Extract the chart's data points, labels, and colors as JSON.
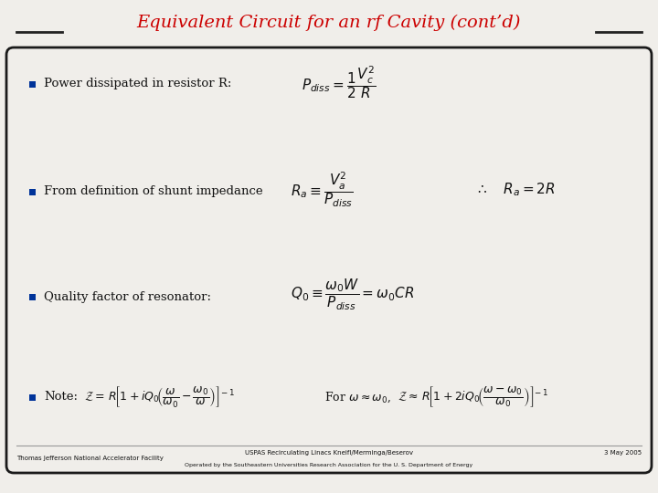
{
  "title": "Equivalent Circuit for an rf Cavity (cont’d)",
  "title_color": "#cc0000",
  "bg_color": "#f0eeea",
  "border_color": "#1a1a1a",
  "bullet_color": "#003399",
  "text_color": "#111111",
  "bullet1_text": "Power dissipated in resistor R:",
  "bullet1_formula": "$P_{diss} = \\dfrac{1}{2}\\dfrac{V_c^2}{R}$",
  "bullet2_text": "From definition of shunt impedance",
  "bullet2_formula": "$R_a \\equiv \\dfrac{V_a^2}{P_{diss}}$",
  "bullet2_result": "$\\therefore\\quad R_a = 2R$",
  "bullet3_text": "Quality factor of resonator:",
  "bullet3_formula": "$Q_0 \\equiv \\dfrac{\\omega_0 W}{P_{diss}} = \\omega_0 CR$",
  "bullet4_text": "Note:",
  "bullet4_formula1": "$\\mathcal{Z}{=}\\, R\\!\\left[1 + iQ_0\\!\\left(\\dfrac{\\omega}{\\omega_0} - \\dfrac{\\omega_0}{\\omega}\\right)\\right]^{\\!-1}$",
  "bullet4_for": "For $\\omega \\approx \\omega_0$,",
  "bullet4_formula2": "$\\mathcal{Z}{\\approx}\\, R\\!\\left[1 + 2iQ_0\\!\\left(\\dfrac{\\omega - \\omega_0}{\\omega_0}\\right)\\right]^{\\!-1}$",
  "footer_left": "Thomas Jefferson National Accelerator Facility",
  "footer_center1": "USPAS Recirculating Linacs Kneifl/Merminga/Beserov",
  "footer_center2": "Operated by the Southeastern Universities Research Association for the U. S. Department of Energy",
  "footer_right": "3 May 2005",
  "line_color": "#222222"
}
